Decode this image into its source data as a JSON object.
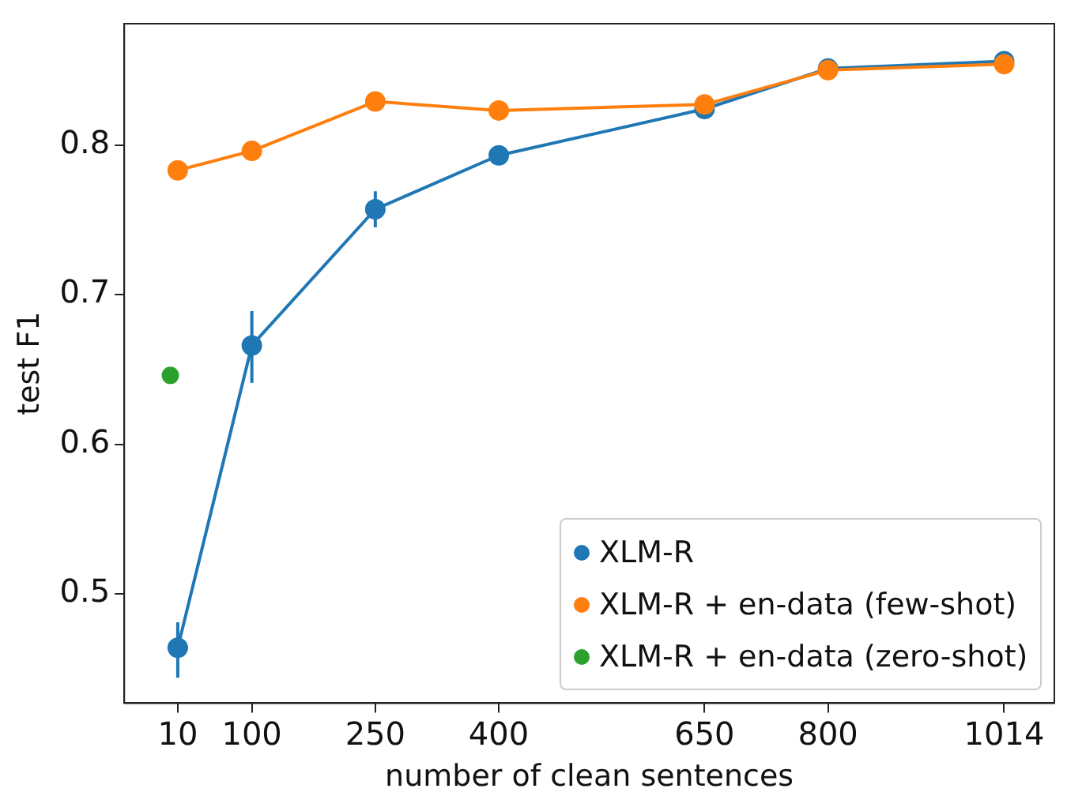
{
  "chart_data": {
    "type": "line",
    "xlabel": "number of clean sentences",
    "ylabel": "test F1",
    "xlim": [
      -55,
      1075
    ],
    "xticks": [
      10,
      100,
      250,
      400,
      650,
      800,
      1014
    ],
    "ylim": [
      0.427,
      0.881
    ],
    "yticks": [
      0.5,
      0.6,
      0.7,
      0.8
    ],
    "grid": false,
    "legend": "bottom right",
    "marker": "circle",
    "line_style": "solid",
    "series": [
      {
        "name": "XLM-R",
        "color": "#1f77b4",
        "x": [
          10,
          100,
          250,
          400,
          650,
          800,
          1014
        ],
        "values": [
          0.464,
          0.666,
          0.757,
          0.793,
          0.824,
          0.851,
          0.856
        ],
        "errors": [
          [
            0.444,
            0.481
          ],
          [
            0.641,
            0.689
          ],
          [
            0.745,
            0.769
          ],
          null,
          null,
          null,
          null
        ]
      },
      {
        "name": "XLM-R + en-data (few-shot)",
        "color": "#ff7f0e",
        "x": [
          10,
          100,
          250,
          400,
          650,
          800,
          1014
        ],
        "values": [
          0.783,
          0.796,
          0.829,
          0.823,
          0.827,
          0.85,
          0.854
        ]
      },
      {
        "name": "XLM-R + en-data (zero-shot)",
        "type": "scatter",
        "color": "#2ca02c",
        "x": [
          1
        ],
        "values": [
          0.646
        ]
      }
    ]
  }
}
